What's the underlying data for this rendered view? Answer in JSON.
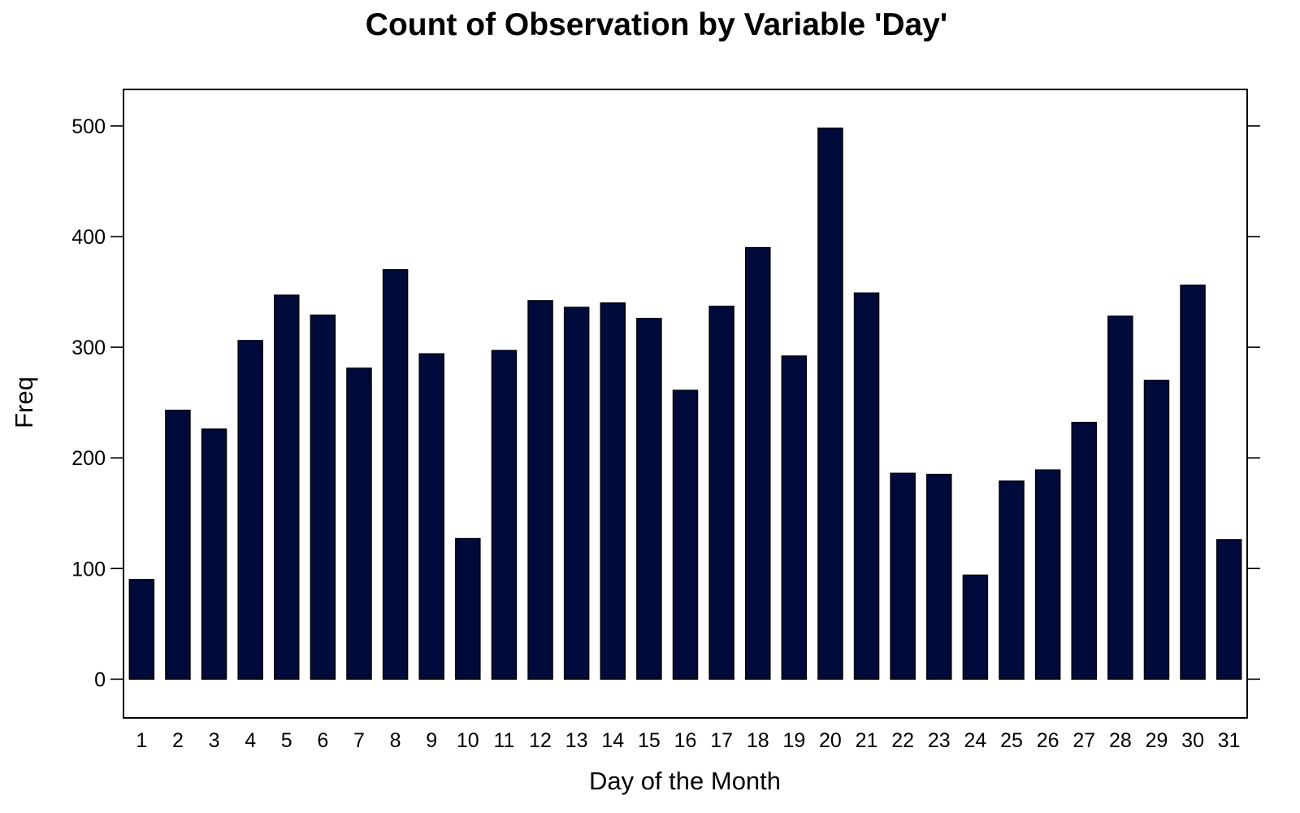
{
  "chart_data": {
    "type": "bar",
    "title": "Count of Observation by Variable 'Day'",
    "xlabel": "Day of the Month",
    "ylabel": "Freq",
    "categories": [
      "1",
      "2",
      "3",
      "4",
      "5",
      "6",
      "7",
      "8",
      "9",
      "10",
      "11",
      "12",
      "13",
      "14",
      "15",
      "16",
      "17",
      "18",
      "19",
      "20",
      "21",
      "22",
      "23",
      "24",
      "25",
      "26",
      "27",
      "28",
      "29",
      "30",
      "31"
    ],
    "values": [
      90,
      243,
      226,
      306,
      347,
      329,
      281,
      370,
      294,
      127,
      297,
      342,
      336,
      340,
      326,
      261,
      337,
      390,
      292,
      498,
      349,
      186,
      185,
      94,
      179,
      189,
      232,
      328,
      270,
      356,
      126
    ],
    "yticks": [
      0,
      100,
      200,
      300,
      400,
      500
    ],
    "ylim": [
      -35,
      533
    ],
    "grid": false,
    "bar_color": "#000b3c"
  }
}
